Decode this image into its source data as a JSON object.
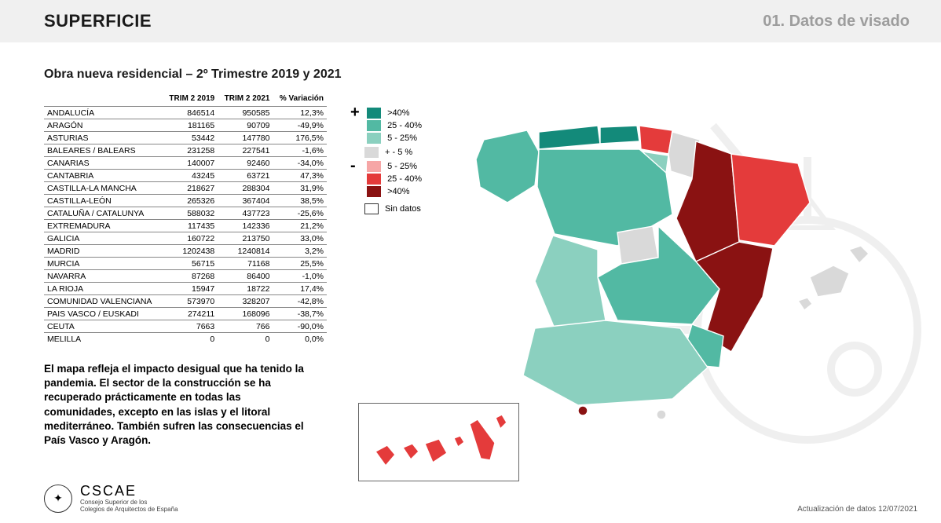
{
  "header": {
    "title": "SUPERFICIE",
    "section": "01. Datos de visado"
  },
  "subtitle": "Obra nueva residencial – 2º Trimestre 2019 y 2021",
  "table": {
    "columns": [
      "",
      "TRIM 2 2019",
      "TRIM 2 2021",
      "% Variación"
    ],
    "rows": [
      [
        "ANDALUCÍA",
        "846514",
        "950585",
        "12,3%"
      ],
      [
        "ARAGÓN",
        "181165",
        "90709",
        "-49,9%"
      ],
      [
        "ASTURIAS",
        "53442",
        "147780",
        "176,5%"
      ],
      [
        "BALEARES / BALEARS",
        "231258",
        "227541",
        "-1,6%"
      ],
      [
        "CANARIAS",
        "140007",
        "92460",
        "-34,0%"
      ],
      [
        "CANTABRIA",
        "43245",
        "63721",
        "47,3%"
      ],
      [
        "CASTILLA-LA MANCHA",
        "218627",
        "288304",
        "31,9%"
      ],
      [
        "CASTILLA-LEÓN",
        "265326",
        "367404",
        "38,5%"
      ],
      [
        "CATALUÑA / CATALUNYA",
        "588032",
        "437723",
        "-25,6%"
      ],
      [
        "EXTREMADURA",
        "117435",
        "142336",
        "21,2%"
      ],
      [
        "GALICIA",
        "160722",
        "213750",
        "33,0%"
      ],
      [
        "MADRID",
        "1202438",
        "1240814",
        "3,2%"
      ],
      [
        "MURCIA",
        "56715",
        "71168",
        "25,5%"
      ],
      [
        "NAVARRA",
        "87268",
        "86400",
        "-1,0%"
      ],
      [
        "LA RIOJA",
        "15947",
        "18722",
        "17,4%"
      ],
      [
        "COMUNIDAD VALENCIANA",
        "573970",
        "328207",
        "-42,8%"
      ],
      [
        "PAIS VASCO / EUSKADI",
        "274211",
        "168096",
        "-38,7%"
      ],
      [
        "CEUTA",
        "7663",
        "766",
        "-90,0%"
      ],
      [
        "MELILLA",
        "0",
        "0",
        "0,0%"
      ]
    ]
  },
  "summary": "El mapa refleja el impacto desigual que ha tenido la pandemia. El sector de la construcción se ha recuperado prácticamente en todas las comunidades, excepto en las islas y el litoral mediterráneo. También sufren las consecuencias el País Vasco y Aragón.",
  "legend": {
    "positive_sign": "+",
    "negative_sign": "-",
    "positive": [
      {
        "label": ">40%",
        "color": "#138a7a"
      },
      {
        "label": "25 - 40%",
        "color": "#52b9a3"
      },
      {
        "label": "5 - 25%",
        "color": "#8bd0bf"
      }
    ],
    "neutral": {
      "label": "+ - 5 %",
      "color": "#d9d9d9"
    },
    "negative": [
      {
        "label": "5 - 25%",
        "color": "#f6a6a6"
      },
      {
        "label": "25 - 40%",
        "color": "#e43b3b"
      },
      {
        "label": ">40%",
        "color": "#8a1212"
      }
    ],
    "nodata": "Sin datos"
  },
  "map": {
    "stroke": "#ffffff",
    "stroke_width": 1.4,
    "regions": {
      "galicia": "#52b9a3",
      "asturias": "#138a7a",
      "cantabria": "#138a7a",
      "pais_vasco": "#e43b3b",
      "navarra": "#d9d9d9",
      "la_rioja": "#8bd0bf",
      "aragon": "#8a1212",
      "catalunya": "#e43b3b",
      "castilla_leon": "#52b9a3",
      "madrid": "#d9d9d9",
      "castilla_la_mancha": "#52b9a3",
      "extremadura": "#8bd0bf",
      "valencia": "#8a1212",
      "murcia": "#52b9a3",
      "andalucia": "#8bd0bf",
      "baleares": "#d9d9d9",
      "canarias": "#e43b3b",
      "ceuta": "#8a1212",
      "melilla": "#d9d9d9"
    }
  },
  "footer": {
    "brand": "CSCAE",
    "brand_sub1": "Consejo Superior de los",
    "brand_sub2": "Colegios de Arquitectos de España",
    "update": "Actualización de datos 12/07/2021"
  }
}
